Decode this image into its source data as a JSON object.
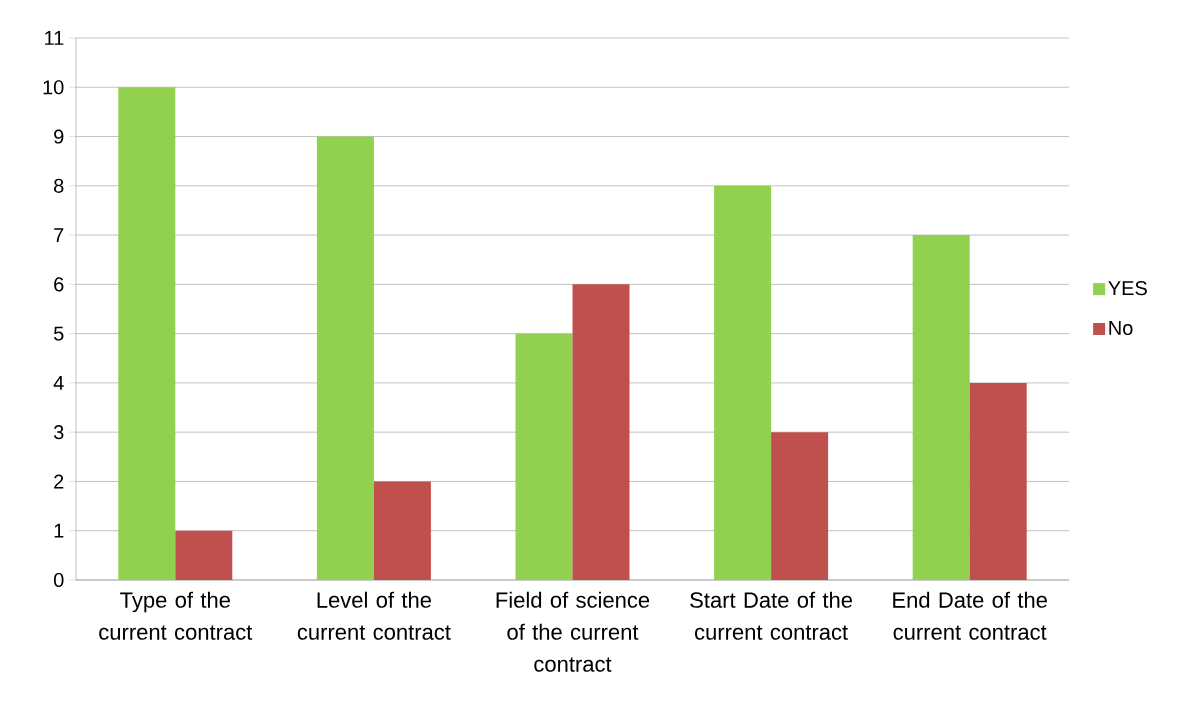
{
  "chart_data": {
    "type": "bar",
    "categories": [
      "Type of the current contract",
      "Level of the current contract",
      "Field of science of the current contract",
      "Start Date of the current contract",
      "End Date of the current contract"
    ],
    "series": [
      {
        "name": "YES",
        "color": "#92d050",
        "values": [
          10,
          9,
          5,
          8,
          7
        ]
      },
      {
        "name": "No",
        "color": "#c0504d",
        "values": [
          1,
          2,
          6,
          3,
          4
        ]
      }
    ],
    "ylim": [
      0,
      11
    ],
    "yticks": [
      0,
      1,
      2,
      3,
      4,
      5,
      6,
      7,
      8,
      9,
      10,
      11
    ],
    "grid": "y",
    "legend": "right"
  }
}
